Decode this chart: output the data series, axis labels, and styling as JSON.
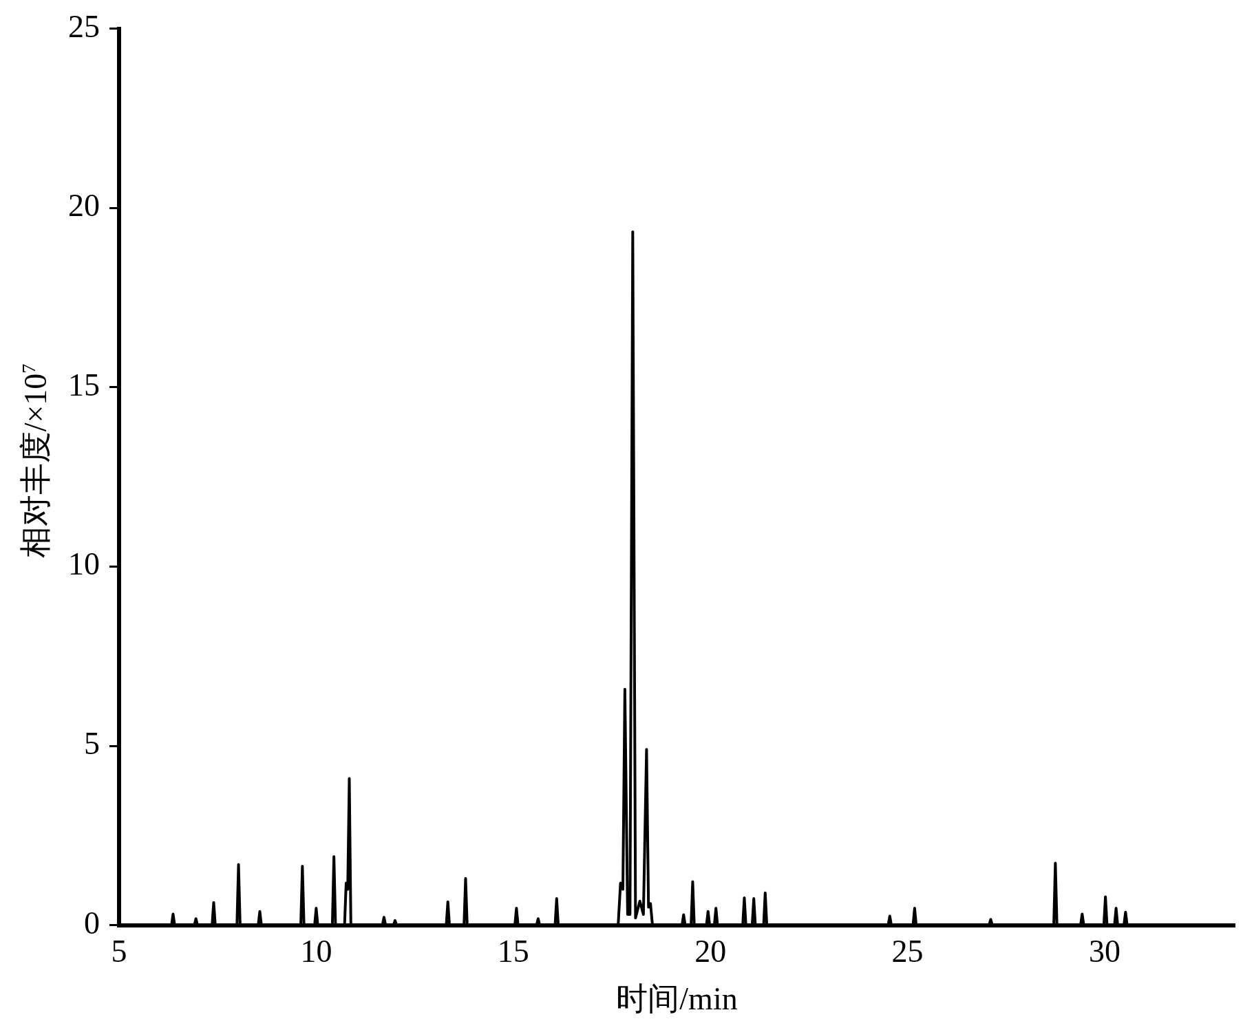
{
  "chart_data": {
    "type": "line",
    "xlabel": "时间/min",
    "ylabel": "相对丰度/×10$^{7}$",
    "color": "#000000",
    "x": [
      5,
      6.33,
      6.37,
      6.41,
      6.91,
      6.95,
      6.99,
      7.36,
      7.4,
      7.44,
      7.99,
      8.03,
      8.07,
      8.53,
      8.57,
      8.61,
      9.61,
      9.65,
      9.69,
      9.96,
      10.0,
      10.04,
      10.41,
      10.45,
      10.49,
      10.72,
      10.76,
      10.8,
      10.84,
      10.88,
      11.68,
      11.72,
      11.76,
      11.96,
      12.0,
      12.04,
      13.3,
      13.34,
      13.38,
      13.75,
      13.79,
      13.83,
      15.04,
      15.08,
      15.12,
      15.59,
      15.63,
      15.67,
      16.06,
      16.1,
      16.14,
      17.66,
      17.72,
      17.78,
      17.83,
      17.9,
      17.96,
      18.03,
      18.1,
      18.21,
      18.3,
      18.38,
      18.43,
      18.48,
      18.53,
      19.28,
      19.32,
      19.36,
      19.51,
      19.55,
      19.59,
      19.9,
      19.94,
      19.98,
      20.1,
      20.14,
      20.18,
      20.82,
      20.86,
      20.9,
      21.06,
      21.1,
      21.14,
      21.35,
      21.39,
      21.43,
      24.51,
      24.55,
      24.59,
      25.14,
      25.18,
      25.22,
      27.07,
      27.11,
      27.15,
      28.71,
      28.75,
      28.79,
      29.39,
      29.43,
      29.47,
      29.98,
      30.02,
      30.06,
      30.25,
      30.29,
      30.33,
      30.49,
      30.53,
      30.57,
      33.3
    ],
    "values": [
      0,
      0,
      0.31,
      0,
      0,
      0.18,
      0,
      0,
      0.63,
      0,
      0,
      1.69,
      0,
      0,
      0.38,
      0,
      0,
      1.64,
      0,
      0,
      0.47,
      0,
      0,
      1.91,
      0,
      0,
      1.17,
      1.0,
      4.09,
      0,
      0,
      0.22,
      0,
      0,
      0.13,
      0,
      0,
      0.65,
      0,
      0,
      1.3,
      0,
      0,
      0.47,
      0,
      0,
      0.18,
      0,
      0,
      0.74,
      0,
      0,
      1.17,
      1.0,
      6.58,
      0.3,
      0.3,
      19.33,
      0.2,
      0.67,
      0.3,
      4.9,
      0.5,
      0.6,
      0,
      0,
      0.29,
      0,
      0,
      1.21,
      0,
      0,
      0.38,
      0,
      0,
      0.47,
      0,
      0,
      0.76,
      0,
      0,
      0.74,
      0,
      0,
      0.9,
      0,
      0,
      0.25,
      0,
      0,
      0.47,
      0,
      0,
      0.16,
      0,
      0,
      1.73,
      0,
      0,
      0.31,
      0,
      0,
      0.79,
      0,
      0,
      0.47,
      0,
      0,
      0.36,
      0,
      0
    ],
    "xlim": [
      5,
      33.3
    ],
    "xticks": [
      5,
      10,
      15,
      20,
      25,
      30
    ],
    "ylim": [
      0,
      25
    ],
    "yticks": [
      0,
      5,
      10,
      15,
      20,
      25
    ],
    "grid": false,
    "legend": false,
    "marker": "none",
    "line_style": "solid"
  }
}
